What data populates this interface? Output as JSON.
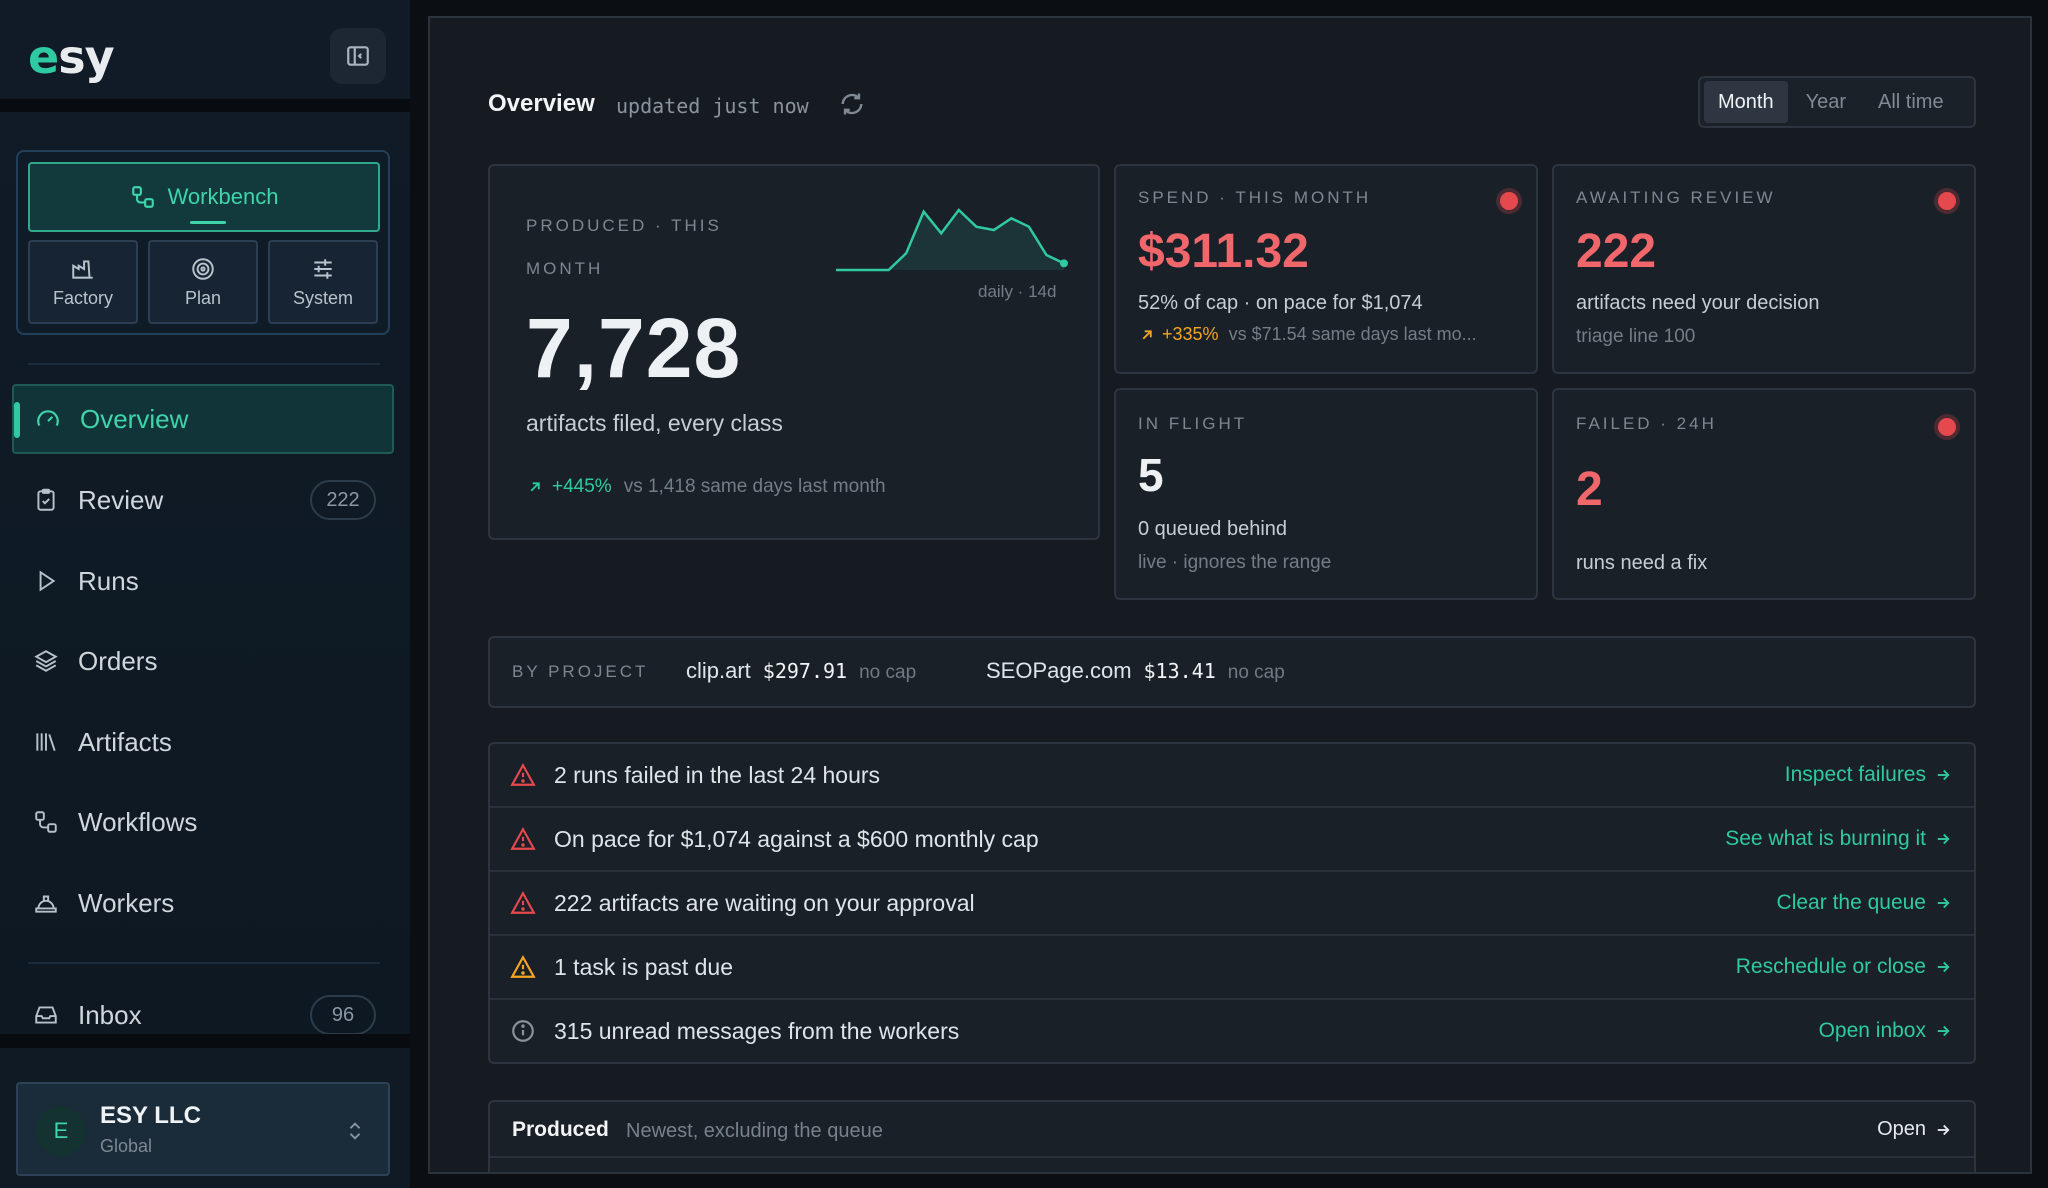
{
  "app": {
    "logo": "esy"
  },
  "sidebar": {
    "workbench_label": "Workbench",
    "modes": [
      {
        "label": "Factory",
        "icon": "factory-icon"
      },
      {
        "label": "Plan",
        "icon": "target-icon"
      },
      {
        "label": "System",
        "icon": "sliders-icon"
      }
    ],
    "nav": [
      {
        "label": "Overview",
        "icon": "gauge-icon",
        "active": true,
        "badge": null
      },
      {
        "label": "Review",
        "icon": "clipboard-check-icon",
        "active": false,
        "badge": "222"
      },
      {
        "label": "Runs",
        "icon": "play-icon",
        "active": false,
        "badge": null
      },
      {
        "label": "Orders",
        "icon": "layers-icon",
        "active": false,
        "badge": null
      },
      {
        "label": "Artifacts",
        "icon": "library-icon",
        "active": false,
        "badge": null
      },
      {
        "label": "Workflows",
        "icon": "workflow-icon",
        "active": false,
        "badge": null
      },
      {
        "label": "Workers",
        "icon": "hard-hat-icon",
        "active": false,
        "badge": null
      },
      {
        "label": "Inbox",
        "icon": "inbox-icon",
        "active": false,
        "badge": "96"
      }
    ],
    "org": {
      "avatar": "E",
      "name": "ESY LLC",
      "sub": "Global"
    }
  },
  "header": {
    "title": "Overview",
    "updated": "updated just now",
    "ranges": [
      "Month",
      "Year",
      "All time"
    ],
    "selected_range": "Month"
  },
  "cards": {
    "produced": {
      "label_line1": "PRODUCED · THIS",
      "label_line2": "MONTH",
      "value": "7,728",
      "desc": "artifacts filed, every class",
      "delta": "+445%",
      "delta_note": "vs 1,418 same days last month",
      "spark_caption": "daily · 14d",
      "spark_values": [
        0,
        0,
        0,
        0,
        1,
        3.5,
        2.2,
        3.6,
        2.6,
        2.4,
        3.1,
        2.6,
        0.9,
        0.4
      ]
    },
    "spend": {
      "label": "SPEND · THIS MONTH",
      "value": "$311.32",
      "line1": "52% of cap · on pace for $1,074",
      "delta": "+335%",
      "delta_note": "vs $71.54 same days last mo..."
    },
    "review": {
      "label": "AWAITING REVIEW",
      "value": "222",
      "line1": "artifacts need your decision",
      "line2": "triage line 100"
    },
    "inflight": {
      "label": "IN FLIGHT",
      "value": "5",
      "line1": "0 queued behind",
      "line2": "live · ignores the range"
    },
    "failed": {
      "label": "FAILED · 24H",
      "value": "2",
      "line1": "runs need a fix"
    }
  },
  "projects": {
    "label": "BY PROJECT",
    "items": [
      {
        "name": "clip.art",
        "amount": "$297.91",
        "cap": "no cap"
      },
      {
        "name": "SEOPage.com",
        "amount": "$13.41",
        "cap": "no cap"
      }
    ]
  },
  "alerts": [
    {
      "icon": "alert-triangle-icon",
      "color": "#e5484d",
      "text": "2 runs failed in the last 24 hours",
      "action": "Inspect failures"
    },
    {
      "icon": "alert-triangle-icon",
      "color": "#e5484d",
      "text": "On pace for $1,074 against a $600 monthly cap",
      "action": "See what is burning it"
    },
    {
      "icon": "alert-triangle-icon",
      "color": "#e5484d",
      "text": "222 artifacts are waiting on your approval",
      "action": "Clear the queue"
    },
    {
      "icon": "alert-triangle-icon",
      "color": "#f5a524",
      "text": "1 task is past due",
      "action": "Reschedule or close"
    },
    {
      "icon": "info-icon",
      "color": "#8a949d",
      "text": "315 unread messages from the workers",
      "action": "Open inbox"
    }
  ],
  "produced_section": {
    "title": "Produced",
    "subtitle": "Newest, excluding the queue",
    "open_label": "Open"
  },
  "colors": {
    "accent": "#2fc9a2",
    "danger": "#e5484d",
    "warning": "#f5a524",
    "background": "#161b22"
  }
}
